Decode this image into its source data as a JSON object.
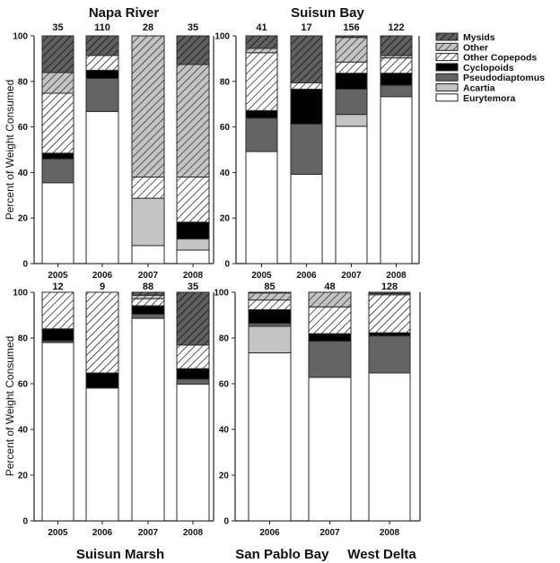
{
  "chart_data": {
    "type": "bar",
    "stacked": true,
    "ylabel": "Percent of Weight Consumed",
    "ylim": [
      0,
      100
    ],
    "yticks": [
      0,
      20,
      40,
      60,
      80,
      100
    ],
    "legend": {
      "placement": "top-right",
      "entries": [
        "Mysids",
        "Other",
        "Other Copepods",
        "Cyclopoids",
        "Pseudodiaptomus",
        "Acartia",
        "Eurytemora"
      ]
    },
    "categories_order_bottom_to_top": [
      "Eurytemora",
      "Acartia",
      "Pseudodiaptomus",
      "Cyclopoids",
      "Other Copepods",
      "Other",
      "Mysids"
    ],
    "styles": {
      "Mysids": {
        "fill": "#606060",
        "hatch": true
      },
      "Other": {
        "fill": "#c4c4c4",
        "hatch": true
      },
      "Other Copepods": {
        "fill": "#ffffff",
        "hatch": true
      },
      "Cyclopoids": {
        "fill": "#000000",
        "hatch": false
      },
      "Pseudodiaptomus": {
        "fill": "#646464",
        "hatch": false
      },
      "Acartia": {
        "fill": "#c4c4c4",
        "hatch": false
      },
      "Eurytemora": {
        "fill": "#ffffff",
        "hatch": false
      }
    },
    "panels": [
      {
        "id": "top-left",
        "title": "Napa River",
        "title_position": "top",
        "bars": [
          {
            "x": "2005",
            "n": "35",
            "values": {
              "Eurytemora": 35.5,
              "Acartia": 0,
              "Pseudodiaptomus": 10.5,
              "Cyclopoids": 2.5,
              "Other Copepods": 26.3,
              "Other": 9.1,
              "Mysids": 16.1
            }
          },
          {
            "x": "2006",
            "n": "110",
            "values": {
              "Eurytemora": 66.8,
              "Acartia": 0,
              "Pseudodiaptomus": 14.5,
              "Cyclopoids": 3.6,
              "Other Copepods": 6.5,
              "Other": 0,
              "Mysids": 8.6
            }
          },
          {
            "x": "2007",
            "n": "28",
            "values": {
              "Eurytemora": 7.9,
              "Acartia": 20.8,
              "Pseudodiaptomus": 0,
              "Cyclopoids": 0,
              "Other Copepods": 9.3,
              "Other": 62.0,
              "Mysids": 0
            }
          },
          {
            "x": "2008",
            "n": "35",
            "values": {
              "Eurytemora": 5.9,
              "Acartia": 4.9,
              "Pseudodiaptomus": 0,
              "Cyclopoids": 7.4,
              "Other Copepods": 19.8,
              "Other": 49.4,
              "Mysids": 12.6
            }
          }
        ]
      },
      {
        "id": "top-right",
        "title": "Suisun Bay",
        "title_position": "top",
        "bars": [
          {
            "x": "2005",
            "n": "41",
            "values": {
              "Eurytemora": 49.2,
              "Acartia": 0,
              "Pseudodiaptomus": 14.7,
              "Cyclopoids": 3.3,
              "Other Copepods": 25.4,
              "Other": 1.9,
              "Mysids": 5.5
            }
          },
          {
            "x": "2006",
            "n": "17",
            "values": {
              "Eurytemora": 39.2,
              "Acartia": 0,
              "Pseudodiaptomus": 22.1,
              "Cyclopoids": 15.3,
              "Other Copepods": 2.8,
              "Other": 0,
              "Mysids": 20.6
            }
          },
          {
            "x": "2007",
            "n": "156",
            "values": {
              "Eurytemora": 60.3,
              "Acartia": 5.2,
              "Pseudodiaptomus": 11.1,
              "Cyclopoids": 7.0,
              "Other Copepods": 4.9,
              "Other": 10.8,
              "Mysids": 0.7
            }
          },
          {
            "x": "2008",
            "n": "122",
            "values": {
              "Eurytemora": 73.3,
              "Acartia": 0,
              "Pseudodiaptomus": 5.0,
              "Cyclopoids": 5.3,
              "Other Copepods": 6.7,
              "Other": 1.1,
              "Mysids": 8.6
            }
          }
        ]
      },
      {
        "id": "bottom-left",
        "title": "Suisun Marsh",
        "title_position": "bottom",
        "bars": [
          {
            "x": "2005",
            "n": "12",
            "values": {
              "Eurytemora": 78.0,
              "Acartia": 0,
              "Pseudodiaptomus": 0.8,
              "Cyclopoids": 5.2,
              "Other Copepods": 16.0,
              "Other": 0,
              "Mysids": 0
            }
          },
          {
            "x": "2006",
            "n": "9",
            "values": {
              "Eurytemora": 58.1,
              "Acartia": 0,
              "Pseudodiaptomus": 0,
              "Cyclopoids": 6.6,
              "Other Copepods": 35.3,
              "Other": 0,
              "Mysids": 0
            }
          },
          {
            "x": "2007",
            "n": "88",
            "values": {
              "Eurytemora": 88.6,
              "Acartia": 0,
              "Pseudodiaptomus": 1.8,
              "Cyclopoids": 3.7,
              "Other Copepods": 3.1,
              "Other": 1.5,
              "Mysids": 1.3
            }
          },
          {
            "x": "2008",
            "n": "35",
            "values": {
              "Eurytemora": 59.8,
              "Acartia": 0,
              "Pseudodiaptomus": 2.2,
              "Cyclopoids": 4.6,
              "Other Copepods": 10.3,
              "Other": 0,
              "Mysids": 23.1
            }
          }
        ]
      },
      {
        "id": "bottom-right",
        "title": "San Pablo Bay     West Delta",
        "title_position": "bottom",
        "bars": [
          {
            "x": "2006",
            "n": "85",
            "values": {
              "Eurytemora": 73.5,
              "Acartia": 11.6,
              "Pseudodiaptomus": 1.3,
              "Cyclopoids": 6.0,
              "Other Copepods": 4.2,
              "Other": 3.1,
              "Mysids": 0.3
            }
          },
          {
            "x": "2007",
            "n": "48",
            "values": {
              "Eurytemora": 62.8,
              "Acartia": 0,
              "Pseudodiaptomus": 15.8,
              "Cyclopoids": 3.3,
              "Other Copepods": 11.7,
              "Other": 6.4,
              "Mysids": 0
            }
          },
          {
            "x": "2008",
            "n": "128",
            "values": {
              "Eurytemora": 64.7,
              "Acartia": 0,
              "Pseudodiaptomus": 16.2,
              "Cyclopoids": 1.4,
              "Other Copepods": 16.6,
              "Other": 0.5,
              "Mysids": 0.6
            }
          }
        ]
      }
    ]
  }
}
